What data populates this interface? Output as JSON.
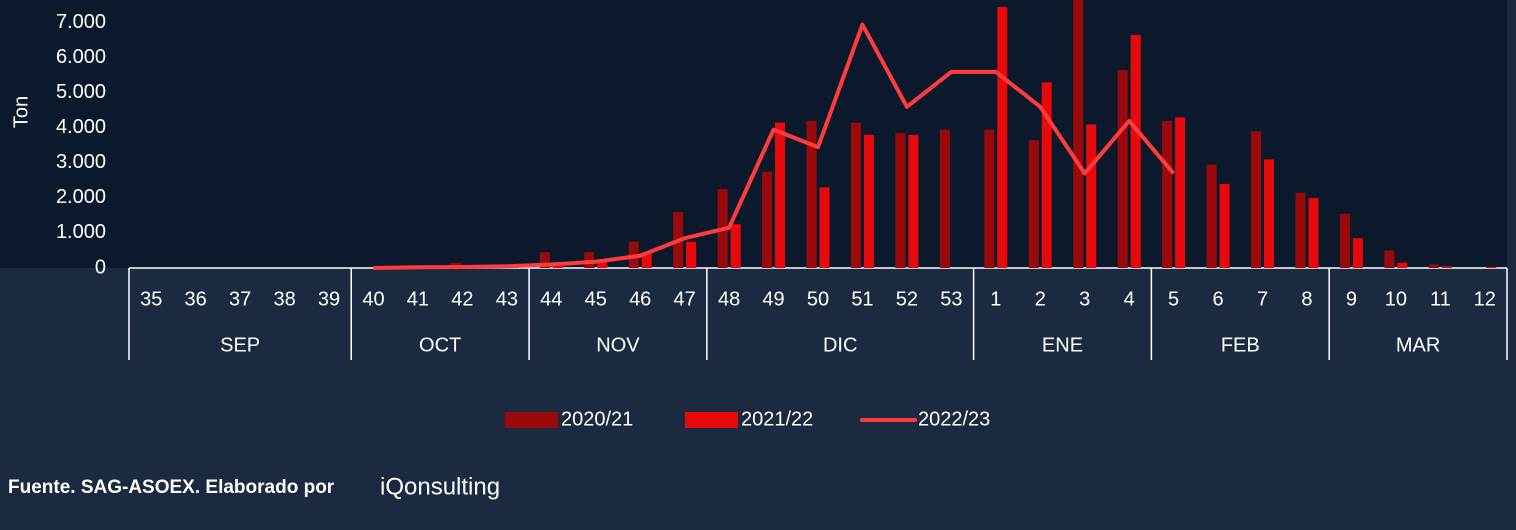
{
  "chart_data": {
    "type": "bar_line",
    "y_label": "Ton",
    "groups": [
      {
        "label": "SEP",
        "categories": [
          "35",
          "36",
          "37",
          "38",
          "39"
        ]
      },
      {
        "label": "OCT",
        "categories": [
          "40",
          "41",
          "42",
          "43"
        ]
      },
      {
        "label": "NOV",
        "categories": [
          "44",
          "45",
          "46",
          "47"
        ]
      },
      {
        "label": "DIC",
        "categories": [
          "48",
          "49",
          "50",
          "51",
          "52",
          "53"
        ]
      },
      {
        "label": "ENE",
        "categories": [
          "1",
          "2",
          "3",
          "4"
        ]
      },
      {
        "label": "FEB",
        "categories": [
          "5",
          "6",
          "7",
          "8"
        ]
      },
      {
        "label": "MAR",
        "categories": [
          "9",
          "10",
          "11",
          "12"
        ]
      }
    ],
    "series": [
      {
        "name": "2020/21",
        "color": "#9b0a0a",
        "kind": "bar",
        "values": [
          0,
          0,
          0,
          0,
          0,
          0,
          50,
          150,
          100,
          450,
          450,
          750,
          1600,
          2250,
          2750,
          4200,
          4150,
          3850,
          3950,
          3950,
          3650,
          7800,
          5650,
          4200,
          2950,
          3900,
          2150,
          1550,
          500,
          100,
          0
        ]
      },
      {
        "name": "2021/22",
        "color": "#e8090b",
        "kind": "bar",
        "values": [
          0,
          0,
          0,
          0,
          0,
          0,
          30,
          80,
          80,
          150,
          250,
          450,
          750,
          1250,
          4150,
          2300,
          3800,
          3800,
          0,
          7450,
          5300,
          4100,
          6650,
          4300,
          2400,
          3100,
          2000,
          850,
          150,
          50,
          30
        ]
      },
      {
        "name": "2022/23",
        "color": "#ff3b3b",
        "kind": "line",
        "values": [
          null,
          null,
          null,
          null,
          null,
          0,
          20,
          30,
          50,
          100,
          180,
          350,
          850,
          1150,
          3950,
          3450,
          6950,
          4600,
          5600,
          5600,
          4600,
          2700,
          4200,
          2700,
          null,
          null,
          null,
          null,
          null,
          null,
          null
        ]
      }
    ],
    "ylim": [
      0,
      7650
    ],
    "yticks": [
      0,
      {
        "value": 1000,
        "label": "1.000"
      },
      {
        "value": 2000,
        "label": "2.000"
      },
      {
        "value": 3000,
        "label": "3.000"
      },
      {
        "value": 4000,
        "label": "4.000"
      },
      {
        "value": 5000,
        "label": "5.000"
      },
      {
        "value": 6000,
        "label": "6.000"
      },
      {
        "value": 7000,
        "label": "7.000"
      }
    ],
    "source": "Fuente. SAG-ASOEX. Elaborado por",
    "logo": "iQonsulting"
  }
}
